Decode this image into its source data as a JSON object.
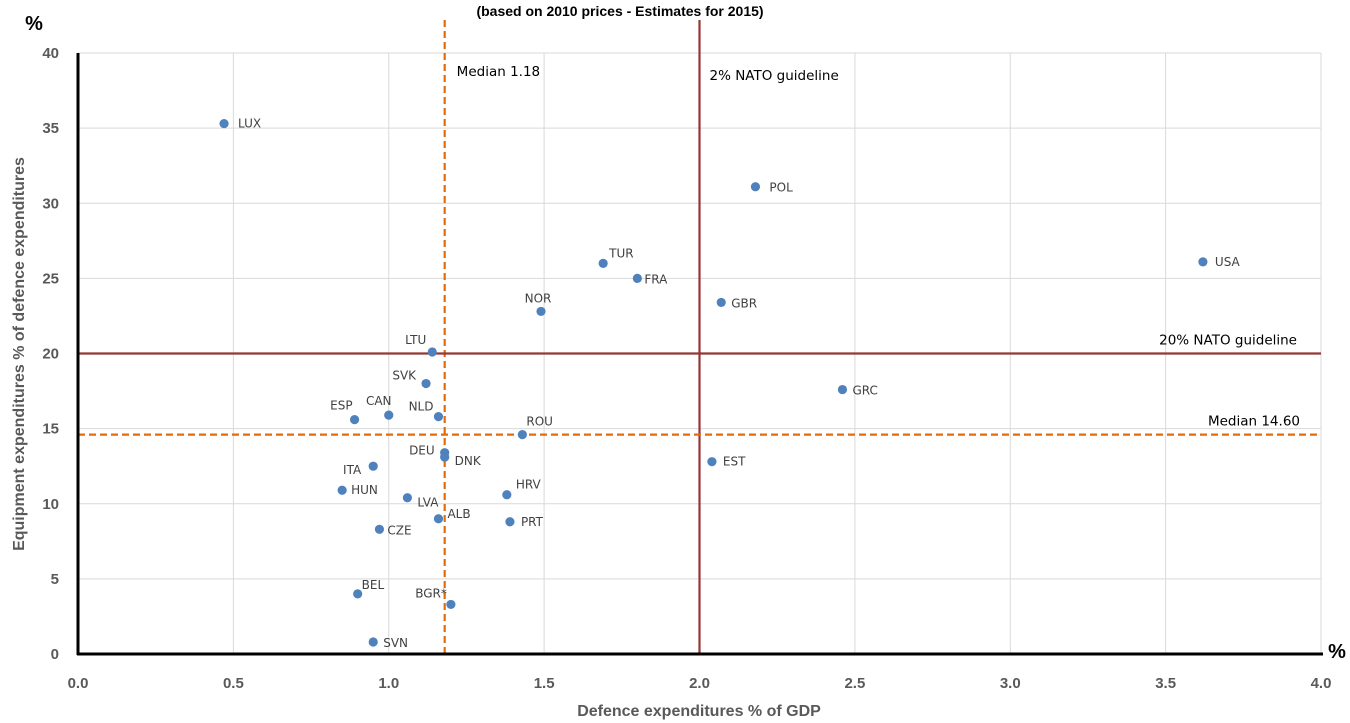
{
  "chart_data": {
    "type": "scatter",
    "title": "(based on 2010 prices - Estimates for 2015)",
    "xlabel": "Defence expenditures % of GDP",
    "ylabel": "Equipment expenditures % of defence expenditures",
    "x_unit": "%",
    "y_unit": "%",
    "xlim": [
      0,
      4
    ],
    "ylim": [
      0,
      40
    ],
    "x_ticks": [
      "0.0",
      "0.5",
      "1.0",
      "1.5",
      "2.0",
      "2.5",
      "3.0",
      "3.5",
      "4.0"
    ],
    "y_ticks": [
      "0",
      "5",
      "10",
      "15",
      "20",
      "25",
      "30",
      "35",
      "40"
    ],
    "grid": true,
    "point_color": "#4f81bd",
    "points": [
      {
        "label": "LUX",
        "x": 0.47,
        "y": 35.3
      },
      {
        "label": "POL",
        "x": 2.18,
        "y": 31.1
      },
      {
        "label": "TUR",
        "x": 1.69,
        "y": 26.0
      },
      {
        "label": "FRA",
        "x": 1.8,
        "y": 25.0
      },
      {
        "label": "USA",
        "x": 3.62,
        "y": 26.1
      },
      {
        "label": "GBR",
        "x": 2.07,
        "y": 23.4
      },
      {
        "label": "NOR",
        "x": 1.49,
        "y": 22.8
      },
      {
        "label": "LTU",
        "x": 1.14,
        "y": 20.1
      },
      {
        "label": "SVK",
        "x": 1.12,
        "y": 18.0
      },
      {
        "label": "GRC",
        "x": 2.46,
        "y": 17.6
      },
      {
        "label": "ESP",
        "x": 0.89,
        "y": 15.6
      },
      {
        "label": "CAN",
        "x": 1.0,
        "y": 15.9
      },
      {
        "label": "NLD",
        "x": 1.16,
        "y": 15.8
      },
      {
        "label": "ROU",
        "x": 1.43,
        "y": 14.6
      },
      {
        "label": "DEU",
        "x": 1.18,
        "y": 13.4
      },
      {
        "label": "DNK",
        "x": 1.18,
        "y": 13.1
      },
      {
        "label": "ITA",
        "x": 0.95,
        "y": 12.5
      },
      {
        "label": "EST",
        "x": 2.04,
        "y": 12.8
      },
      {
        "label": "HUN",
        "x": 0.85,
        "y": 10.9
      },
      {
        "label": "LVA",
        "x": 1.06,
        "y": 10.4
      },
      {
        "label": "HRV",
        "x": 1.38,
        "y": 10.6
      },
      {
        "label": "ALB",
        "x": 1.16,
        "y": 9.0
      },
      {
        "label": "PRT",
        "x": 1.39,
        "y": 8.8
      },
      {
        "label": "CZE",
        "x": 0.97,
        "y": 8.3
      },
      {
        "label": "BEL",
        "x": 0.9,
        "y": 4.0
      },
      {
        "label": "BGR*",
        "x": 1.2,
        "y": 3.3
      },
      {
        "label": "SVN",
        "x": 0.95,
        "y": 0.8
      }
    ],
    "reference_lines": [
      {
        "name": "median_x",
        "label": "Median 1.18",
        "axis": "x",
        "value": 1.18,
        "color": "#e36c09",
        "style": "dashed"
      },
      {
        "name": "nato_x",
        "label": "2% NATO guideline",
        "axis": "x",
        "value": 2.0,
        "color": "#953735",
        "style": "solid"
      },
      {
        "name": "nato_y",
        "label": "20% NATO guideline",
        "axis": "y",
        "value": 20,
        "color": "#953735",
        "style": "solid"
      },
      {
        "name": "median_y",
        "label": "Median 14.60",
        "axis": "y",
        "value": 14.6,
        "color": "#e36c09",
        "style": "dashed"
      }
    ]
  }
}
